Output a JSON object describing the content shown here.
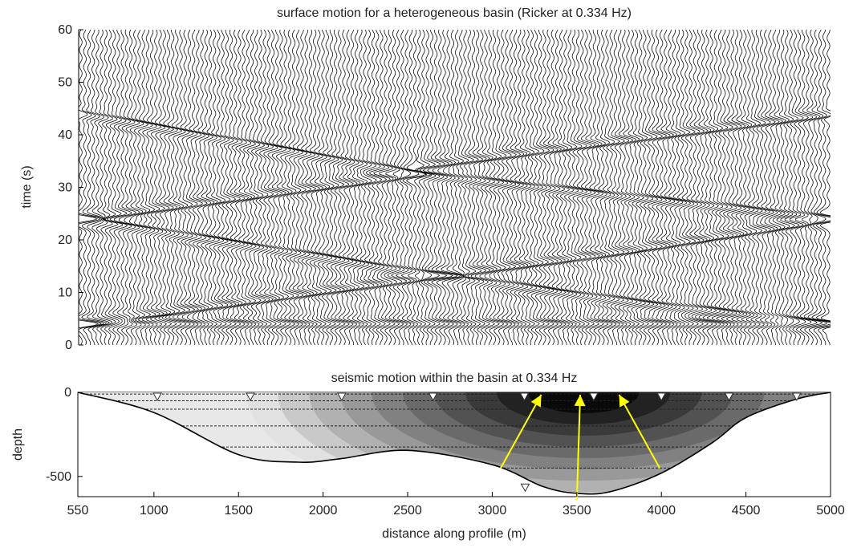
{
  "chart_data": [
    {
      "type": "line",
      "subtype": "seismogram-section",
      "title": "surface motion for a heterogeneous basin (Ricker at 0.334 Hz)",
      "xlabel": "",
      "ylabel": "time (s)",
      "xlim": [
        550,
        5000
      ],
      "ylim": [
        0,
        60
      ],
      "yticks": [
        0,
        10,
        20,
        30,
        40,
        50,
        60
      ],
      "trace_count": 180,
      "trace_color": "#000000",
      "arrival_branches": [
        {
          "from": [
            550,
            4
          ],
          "to": [
            5000,
            4
          ]
        },
        {
          "from": [
            550,
            4
          ],
          "to": [
            2050,
            10.5
          ]
        },
        {
          "from": [
            550,
            24
          ],
          "to": [
            2500,
            14
          ]
        },
        {
          "from": [
            2050,
            10.5
          ],
          "to": [
            3700,
            17.5
          ]
        },
        {
          "from": [
            2500,
            14
          ],
          "to": [
            3850,
            8
          ]
        },
        {
          "from": [
            3850,
            8
          ],
          "to": [
            5000,
            4
          ]
        },
        {
          "from": [
            3700,
            17.5
          ],
          "to": [
            5000,
            24
          ]
        },
        {
          "from": [
            550,
            24
          ],
          "to": [
            2550,
            32.5
          ]
        },
        {
          "from": [
            2550,
            32.5
          ],
          "to": [
            5000,
            24
          ]
        },
        {
          "from": [
            550,
            44
          ],
          "to": [
            2550,
            32.5
          ]
        },
        {
          "from": [
            2550,
            34
          ],
          "to": [
            5000,
            44
          ]
        }
      ]
    },
    {
      "type": "heatmap",
      "subtype": "basin-cross-section",
      "title": "seismic motion within the basin at 0.334 Hz",
      "xlabel": "distance along profile (m)",
      "ylabel": "depth",
      "xlim": [
        550,
        5000
      ],
      "ylim": [
        -620,
        0
      ],
      "xticks": [
        550,
        1000,
        1500,
        2000,
        2500,
        3000,
        3500,
        4000,
        4500,
        5000
      ],
      "yticks": [
        -500,
        0
      ],
      "basin_profile": [
        {
          "x": 550,
          "depth": 0
        },
        {
          "x": 1000,
          "depth": -120
        },
        {
          "x": 1500,
          "depth": -370
        },
        {
          "x": 1850,
          "depth": -415
        },
        {
          "x": 2100,
          "depth": -395
        },
        {
          "x": 2500,
          "depth": -345
        },
        {
          "x": 3000,
          "depth": -430
        },
        {
          "x": 3300,
          "depth": -560
        },
        {
          "x": 3500,
          "depth": -600
        },
        {
          "x": 3700,
          "depth": -590
        },
        {
          "x": 4000,
          "depth": -480
        },
        {
          "x": 4300,
          "depth": -300
        },
        {
          "x": 4500,
          "depth": -150
        },
        {
          "x": 4800,
          "depth": -40
        },
        {
          "x": 5000,
          "depth": 0
        }
      ],
      "layer_depths": [
        -10,
        -50,
        -100,
        -200,
        -325,
        -450
      ],
      "receivers": [
        {
          "x": 1020,
          "depth": 0
        },
        {
          "x": 1570,
          "depth": 0
        },
        {
          "x": 2110,
          "depth": 0
        },
        {
          "x": 2650,
          "depth": 0
        },
        {
          "x": 3190,
          "depth": 0
        },
        {
          "x": 3600,
          "depth": 0
        },
        {
          "x": 4000,
          "depth": 0
        },
        {
          "x": 4400,
          "depth": 0
        },
        {
          "x": 4800,
          "depth": 0
        },
        {
          "x": 3195,
          "depth": -545
        }
      ],
      "amplitude_center": {
        "x": 3540,
        "depth": 0
      },
      "arrows": [
        {
          "from": [
            3050,
            -450
          ],
          "to": [
            3290,
            0
          ]
        },
        {
          "from": [
            3500,
            -640
          ],
          "to": [
            3520,
            0
          ]
        },
        {
          "from": [
            3990,
            -450
          ],
          "to": [
            3750,
            0
          ]
        }
      ],
      "colors": {
        "basin_fill": "#e8e8e8",
        "shading_dark": "#0a0a0a",
        "arrows": "#ffff00",
        "outline": "#000000"
      }
    }
  ]
}
